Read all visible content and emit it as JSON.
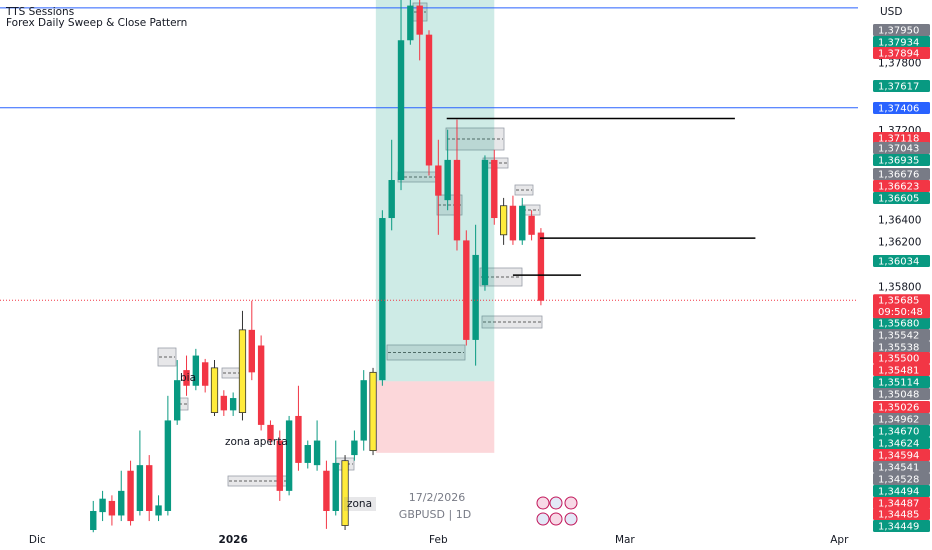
{
  "chart_data": {
    "type": "candlestick",
    "indicator_title": "TTS Sessions",
    "indicator_subtitle": "Forex Daily Sweep & Close Pattern",
    "currency": "USD",
    "date": "17/2/2026",
    "symbol": "GBPUSD | 1D",
    "annotations": [
      "zona aperta",
      "zona",
      "bia"
    ],
    "grid": false,
    "up_color": "#089981",
    "down_color": "#f23645",
    "x": [
      6,
      7,
      8,
      9,
      10,
      11,
      12,
      13,
      14,
      15,
      16,
      17,
      18,
      19,
      20,
      21,
      22,
      23,
      24,
      25,
      26,
      27,
      28,
      29,
      30,
      31,
      32,
      33,
      34,
      35,
      36,
      37,
      38,
      39,
      40,
      41,
      42,
      43,
      44,
      45,
      46,
      47,
      48,
      49,
      50,
      51,
      52,
      53,
      54
    ],
    "open": [
      1.3363,
      1.3379,
      1.3389,
      1.3376,
      1.3416,
      1.338,
      1.3421,
      1.3376,
      1.338,
      1.3461,
      1.3506,
      1.3492,
      1.3513,
      1.3468,
      1.3483,
      1.347,
      1.3468,
      1.3542,
      1.3528,
      1.3457,
      1.3443,
      1.3398,
      1.3465,
      1.3423,
      1.3421,
      1.3416,
      1.338,
      1.3367,
      1.343,
      1.3443,
      1.3434,
      1.3497,
      1.3642,
      1.3676,
      1.3801,
      1.3832,
      1.3806,
      1.3689,
      1.3658,
      1.3694,
      1.3622,
      1.3533,
      1.3582,
      1.3694,
      1.3627,
      1.3653,
      1.3622,
      1.3644,
      1.3629
    ],
    "high": [
      1.3389,
      1.3398,
      1.3394,
      1.3416,
      1.3425,
      1.3452,
      1.343,
      1.3394,
      1.3483,
      1.3515,
      1.3519,
      1.3525,
      1.3516,
      1.3515,
      1.3488,
      1.3486,
      1.3559,
      1.3568,
      1.3537,
      1.3461,
      1.3452,
      1.3465,
      1.3492,
      1.3443,
      1.3461,
      1.3425,
      1.3443,
      1.343,
      1.3452,
      1.3506,
      1.3508,
      1.3649,
      1.3712,
      1.3837,
      1.3837,
      1.3837,
      1.381,
      1.3712,
      1.3721,
      1.373,
      1.3631,
      1.3636,
      1.3698,
      1.3703,
      1.366,
      1.3662,
      1.366,
      1.3649,
      1.3633
    ],
    "low": [
      1.3361,
      1.3371,
      1.3367,
      1.3371,
      1.3367,
      1.3376,
      1.3371,
      1.3371,
      1.3376,
      1.3457,
      1.3483,
      1.3488,
      1.3486,
      1.3465,
      1.3465,
      1.3465,
      1.3461,
      1.3497,
      1.3452,
      1.3439,
      1.3389,
      1.3394,
      1.3416,
      1.3418,
      1.3416,
      1.3364,
      1.3376,
      1.3363,
      1.3425,
      1.3434,
      1.343,
      1.3492,
      1.3631,
      1.3667,
      1.3797,
      1.3783,
      1.368,
      1.3627,
      1.3649,
      1.3613,
      1.3528,
      1.351,
      1.3577,
      1.3636,
      1.3618,
      1.3618,
      1.3618,
      1.3622,
      1.3564
    ],
    "close": [
      1.338,
      1.3391,
      1.3376,
      1.3398,
      1.3371,
      1.3421,
      1.338,
      1.3385,
      1.3461,
      1.3497,
      1.3492,
      1.3519,
      1.3492,
      1.3508,
      1.347,
      1.3481,
      1.3542,
      1.3504,
      1.3457,
      1.3443,
      1.3398,
      1.3461,
      1.3423,
      1.3439,
      1.3443,
      1.338,
      1.3423,
      1.3425,
      1.3443,
      1.3497,
      1.3504,
      1.3642,
      1.3676,
      1.3801,
      1.3832,
      1.3806,
      1.3689,
      1.3662,
      1.3694,
      1.3622,
      1.3533,
      1.3609,
      1.3694,
      1.3642,
      1.3653,
      1.3622,
      1.3653,
      1.3627,
      1.3568
    ],
    "colors": [
      "#089981",
      "#089981",
      "#f23645",
      "#089981",
      "#f23645",
      "#089981",
      "#f23645",
      "#089981",
      "#089981",
      "#089981",
      "#f23645",
      "#089981",
      "#f23645",
      "#ffeb3b",
      "#f23645",
      "#089981",
      "#ffeb3b",
      "#f23645",
      "#f23645",
      "#f23645",
      "#f23645",
      "#089981",
      "#f23645",
      "#089981",
      "#089981",
      "#f23645",
      "#089981",
      "#ffeb3b",
      "#089981",
      "#089981",
      "#ffeb3b",
      "#089981",
      "#089981",
      "#089981",
      "#089981",
      "#f23645",
      "#f23645",
      "#f23645",
      "#089981",
      "#f23645",
      "#f23645",
      "#089981",
      "#089981",
      "#f23645",
      "#ffeb3b",
      "#f23645",
      "#089981",
      "#f23645",
      "#f23645"
    ],
    "xlim": [
      -4,
      88
    ],
    "xticks": [
      {
        "value": 0,
        "label": "Dic"
      },
      {
        "value": 21,
        "label": "2026"
      },
      {
        "value": 43,
        "label": "Feb"
      },
      {
        "value": 63,
        "label": "Mar"
      },
      {
        "value": 86,
        "label": "Apr"
      }
    ],
    "ylim": [
      1.3363,
      1.3837
    ],
    "yticks": [
      {
        "value": 1.378,
        "label": "1,37800"
      },
      {
        "value": 1.372,
        "label": "1,37200"
      },
      {
        "value": 1.364,
        "label": "1,36400"
      },
      {
        "value": 1.362,
        "label": "1,36200"
      },
      {
        "value": 1.358,
        "label": "1,35800"
      }
    ],
    "horizontal_lines": [
      {
        "price": 1.383,
        "color": "#2962ff"
      },
      {
        "price": 1.37406,
        "color": "#2962ff"
      }
    ],
    "segments": [
      {
        "price": 1.3731,
        "x": [
          43.9,
          74.8
        ]
      },
      {
        "price": 1.3624,
        "x": [
          53.9,
          77
        ]
      },
      {
        "price": 1.3591,
        "x": [
          51,
          58.3
        ]
      }
    ],
    "position": {
      "x": [
        36.3,
        49
      ],
      "target": 1.3837,
      "entry": 1.3496,
      "stop": 1.3432
    },
    "current_price": {
      "value": 1.35685,
      "label": "1,35685",
      "countdown": "09:50:48",
      "color": "#f23645"
    },
    "price_badges": [
      {
        "label": "1,37950",
        "color": "#787b86"
      },
      {
        "label": "1,37934",
        "color": "#089981"
      },
      {
        "label": "1,37894",
        "color": "#f23645"
      },
      {
        "label": "1,37617",
        "color": "#089981"
      },
      {
        "label": "1,37406",
        "color": "#2962ff"
      },
      {
        "label": "1,37118",
        "color": "#f23645"
      },
      {
        "label": "1,37043",
        "color": "#787b86"
      },
      {
        "label": "1,36935",
        "color": "#089981"
      },
      {
        "label": "1,36676",
        "color": "#787b86"
      },
      {
        "label": "1,36623",
        "color": "#f23645"
      },
      {
        "label": "1,36605",
        "color": "#089981"
      },
      {
        "label": "1,36034",
        "color": "#089981"
      },
      {
        "label": "1,35680",
        "color": "#089981"
      },
      {
        "label": "1,35542",
        "color": "#787b86"
      },
      {
        "label": "1,35538",
        "color": "#787b86"
      },
      {
        "label": "1,35500",
        "color": "#f23645"
      },
      {
        "label": "1,35481",
        "color": "#f23645"
      },
      {
        "label": "1,35114",
        "color": "#089981"
      },
      {
        "label": "1,35048",
        "color": "#787b86"
      },
      {
        "label": "1,35026",
        "color": "#f23645"
      },
      {
        "label": "1,34962",
        "color": "#787b86"
      },
      {
        "label": "1,34670",
        "color": "#089981"
      },
      {
        "label": "1,34624",
        "color": "#089981"
      },
      {
        "label": "1,34594",
        "color": "#f23645"
      },
      {
        "label": "1,34541",
        "color": "#787b86"
      },
      {
        "label": "1,34528",
        "color": "#787b86"
      },
      {
        "label": "1,34494",
        "color": "#089981"
      },
      {
        "label": "1,34487",
        "color": "#f23645"
      },
      {
        "label": "1,34485",
        "color": "#f23645"
      },
      {
        "label": "1,34449",
        "color": "#089981"
      }
    ]
  }
}
